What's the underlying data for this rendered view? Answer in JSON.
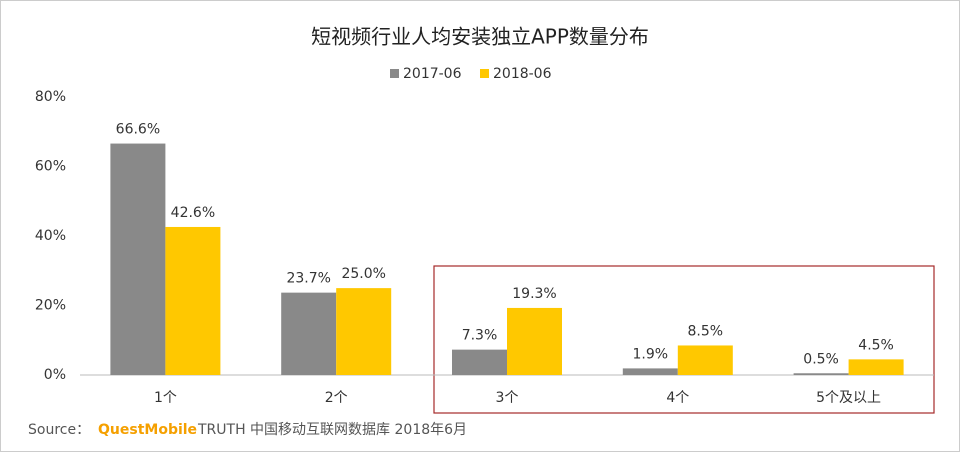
{
  "chart_data": {
    "type": "bar",
    "title": "短视频行业人均安装独立APP数量分布",
    "categories": [
      "1个",
      "2个",
      "3个",
      "4个",
      "5个及以上"
    ],
    "series": [
      {
        "name": "2017-06",
        "color": "#898989",
        "values": [
          66.6,
          23.7,
          7.3,
          1.9,
          0.5
        ],
        "value_labels": [
          "66.6%",
          "23.7%",
          "7.3%",
          "1.9%",
          "0.5%"
        ]
      },
      {
        "name": "2018-06",
        "color": "#ffc800",
        "values": [
          42.6,
          25.0,
          19.3,
          8.5,
          4.5
        ],
        "value_labels": [
          "42.6%",
          "25.0%",
          "19.3%",
          "8.5%",
          "4.5%"
        ]
      }
    ],
    "ylim": [
      0,
      80
    ],
    "yticks": [
      {
        "value": 0,
        "label": "0%"
      },
      {
        "value": 20,
        "label": "20%"
      },
      {
        "value": 40,
        "label": "40%"
      },
      {
        "value": 60,
        "label": "60%"
      },
      {
        "value": 80,
        "label": "80%"
      }
    ],
    "grid": false,
    "legend": "top",
    "source": {
      "prefix": "Source：",
      "brand": "QuestMobile",
      "rest": "TRUTH 中国移动互联网数据库 2018年6月"
    }
  }
}
